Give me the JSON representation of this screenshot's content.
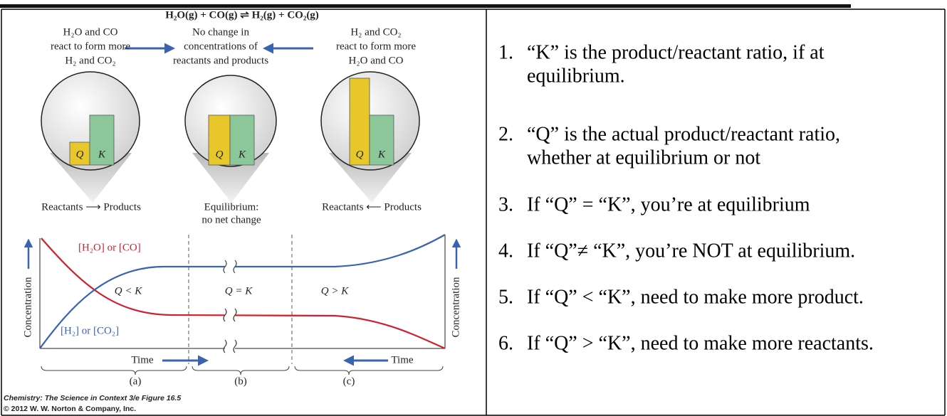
{
  "figure": {
    "equation": "H₂O(g) + CO(g) ⇌ H₂(g) + CO₂(g)",
    "panels": [
      {
        "top_lines": [
          "H₂O and CO",
          "react to form more",
          "H₂ and CO₂"
        ],
        "bars": [
          "Q",
          "K"
        ],
        "stage_lines": [
          "Reactants ⟶ Products"
        ],
        "region": "Q < K",
        "letter": "(a)"
      },
      {
        "top_lines": [
          "No change in",
          "concentrations of",
          "reactants and products"
        ],
        "bars": [
          "Q",
          "K"
        ],
        "stage_lines": [
          "Equilibrium:",
          "no net change"
        ],
        "region": "Q = K",
        "letter": "(b)"
      },
      {
        "top_lines": [
          "H₂ and CO₂",
          "react to form more",
          "H₂O and CO"
        ],
        "bars": [
          "Q",
          "K"
        ],
        "stage_lines": [
          "Reactants ⟵ Products"
        ],
        "region": "Q > K",
        "letter": "(c)"
      }
    ],
    "reactant_label": "[H₂O] or [CO]",
    "product_label": "[H₂] or [CO₂]",
    "y_axis_left": "Concentration",
    "y_axis_right": "Concentration",
    "time_left": "Time",
    "time_right": "Time",
    "caption": [
      "Chemistry: The Science in Context 3/e Figure 16.5",
      "© 2012 W. W. Norton & Company, Inc."
    ]
  },
  "list": [
    {
      "number": "1.",
      "lines": [
        "“K” is the product/reactant ratio, if at",
        "equilibrium."
      ]
    },
    {
      "number": "2.",
      "lines": [
        "“Q” is the actual product/reactant ratio,",
        "whether at equilibrium or not"
      ]
    },
    {
      "number": "3.",
      "lines": [
        "If “Q” = “K”, you’re at equilibrium"
      ]
    },
    {
      "number": "4.",
      "lines": [
        "If “Q”≠ “K”, you’re NOT at equilibrium."
      ]
    },
    {
      "number": "5.",
      "lines": [
        "If “Q” < “K”, need to make more product."
      ]
    },
    {
      "number": "6.",
      "lines": [
        "If “Q” > “K”, need to make more reactants."
      ]
    }
  ]
}
